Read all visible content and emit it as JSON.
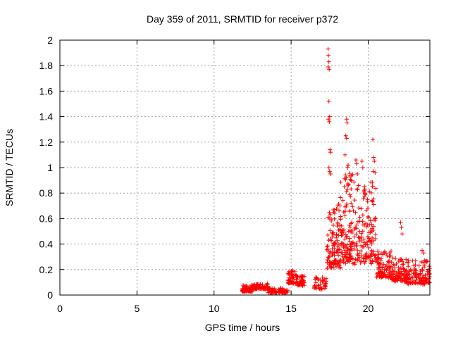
{
  "chart_data": {
    "type": "scatter",
    "title": "Day 359 of 2011, SRMTID for receiver p372",
    "xlabel": "GPS time / hours",
    "ylabel": "SRMTID / TECUs",
    "xlim": [
      0,
      24
    ],
    "ylim": [
      0,
      2
    ],
    "x_ticks": [
      "0",
      "5",
      "10",
      "15",
      "20"
    ],
    "y_ticks": [
      "0",
      "0.2",
      "0.4",
      "0.6",
      "0.8",
      "1",
      "1.2",
      "1.4",
      "1.6",
      "1.8",
      "2"
    ],
    "marker": "+",
    "color": "#ff0000",
    "series": [
      {
        "name": "SRMTID",
        "segments": [
          {
            "start": 11.8,
            "end": 12.5,
            "base": 0.03,
            "spread": 0.05,
            "count": 60
          },
          {
            "start": 12.5,
            "end": 13.5,
            "base": 0.05,
            "spread": 0.04,
            "count": 80
          },
          {
            "start": 13.5,
            "end": 14.8,
            "base": 0.02,
            "spread": 0.04,
            "count": 90
          },
          {
            "start": 14.8,
            "end": 15.4,
            "base": 0.1,
            "spread": 0.1,
            "count": 60
          },
          {
            "start": 15.4,
            "end": 15.9,
            "base": 0.08,
            "spread": 0.08,
            "count": 40
          },
          {
            "start": 16.5,
            "end": 17.3,
            "base": 0.05,
            "spread": 0.1,
            "count": 40
          },
          {
            "start": 17.3,
            "end": 18.2,
            "base": 0.25,
            "spread": 0.5,
            "count": 110
          },
          {
            "start": 18.2,
            "end": 19.2,
            "base": 0.3,
            "spread": 0.7,
            "count": 130
          },
          {
            "start": 19.2,
            "end": 20.5,
            "base": 0.3,
            "spread": 0.6,
            "count": 140
          },
          {
            "start": 20.5,
            "end": 21.5,
            "base": 0.15,
            "spread": 0.2,
            "count": 90
          },
          {
            "start": 21.5,
            "end": 22.5,
            "base": 0.12,
            "spread": 0.18,
            "count": 90
          },
          {
            "start": 22.5,
            "end": 24.0,
            "base": 0.1,
            "spread": 0.18,
            "count": 130
          }
        ],
        "peaks": [
          [
            17.4,
            1.93
          ],
          [
            17.42,
            1.88
          ],
          [
            17.45,
            1.83
          ],
          [
            17.4,
            1.79
          ],
          [
            17.47,
            1.77
          ],
          [
            17.45,
            1.52
          ],
          [
            17.5,
            1.4
          ],
          [
            17.42,
            1.38
          ],
          [
            17.48,
            1.36
          ],
          [
            17.52,
            1.14
          ],
          [
            17.56,
            1.12
          ],
          [
            17.45,
            1.0
          ],
          [
            17.5,
            0.97
          ],
          [
            17.55,
            0.95
          ],
          [
            18.6,
            1.38
          ],
          [
            18.63,
            1.35
          ],
          [
            18.55,
            1.25
          ],
          [
            18.6,
            1.23
          ],
          [
            18.5,
            1.1
          ],
          [
            18.7,
            1.02
          ],
          [
            18.66,
            1.0
          ],
          [
            18.58,
            0.92
          ],
          [
            19.2,
            1.06
          ],
          [
            19.25,
            1.03
          ],
          [
            19.6,
            1.05
          ],
          [
            19.65,
            1.0
          ],
          [
            19.3,
            0.95
          ],
          [
            20.3,
            1.22
          ],
          [
            20.35,
            1.08
          ],
          [
            20.4,
            1.05
          ],
          [
            20.32,
            0.97
          ],
          [
            20.45,
            0.96
          ],
          [
            22.1,
            0.57
          ],
          [
            22.15,
            0.53
          ],
          [
            22.2,
            0.48
          ],
          [
            23.5,
            0.35
          ],
          [
            23.6,
            0.33
          ]
        ]
      }
    ]
  }
}
